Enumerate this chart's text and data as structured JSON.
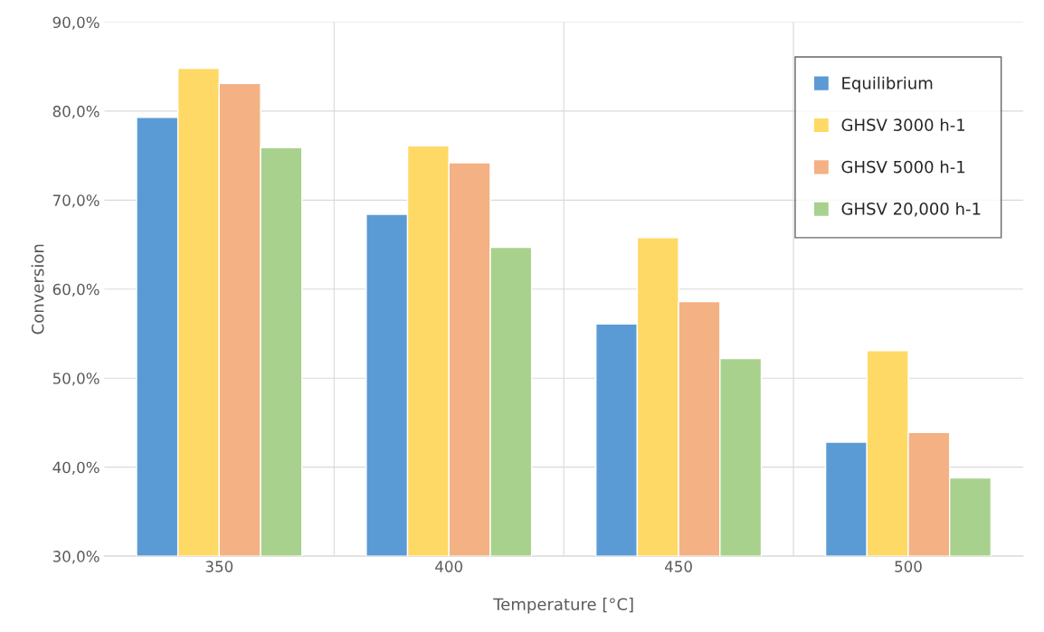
{
  "chart_data": {
    "type": "bar",
    "xlabel": "Temperature [°C]",
    "ylabel": "Conversion",
    "categories": [
      "350",
      "400",
      "450",
      "500"
    ],
    "series": [
      {
        "name": "Equilibrium",
        "color": "#5b9bd5",
        "values": [
          79.3,
          68.4,
          56.1,
          42.8
        ]
      },
      {
        "name": "GHSV 3000 h-1",
        "color": "#ffd966",
        "values": [
          84.8,
          76.1,
          65.8,
          53.1
        ]
      },
      {
        "name": "GHSV 5000 h-1",
        "color": "#f4b183",
        "values": [
          83.1,
          74.2,
          58.6,
          43.9
        ]
      },
      {
        "name": "GHSV 20,000 h-1",
        "color": "#a9d18e",
        "values": [
          75.9,
          64.7,
          52.2,
          38.8
        ]
      }
    ],
    "ylim": [
      30,
      90
    ],
    "yticks": [
      {
        "value": 30,
        "label": "30,0%"
      },
      {
        "value": 40,
        "label": "40,0%"
      },
      {
        "value": 50,
        "label": "50,0%"
      },
      {
        "value": 60,
        "label": "60,0%"
      },
      {
        "value": 70,
        "label": "70,0%"
      },
      {
        "value": 80,
        "label": "80,0%"
      },
      {
        "value": 90,
        "label": "90,0%"
      }
    ],
    "grid": true,
    "legend": "top right"
  }
}
